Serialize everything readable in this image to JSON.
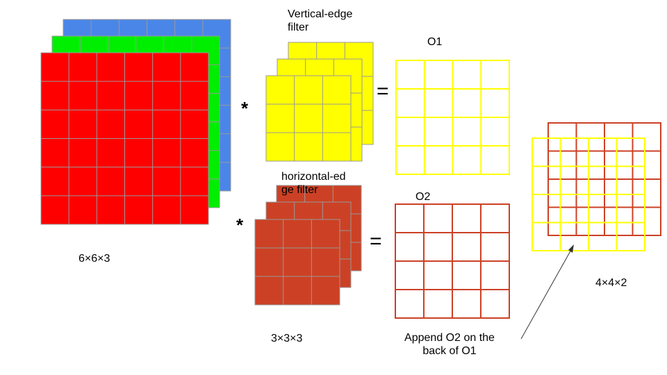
{
  "labels": {
    "input_size": "6×6×3",
    "filter_size": "3×3×3",
    "vertical_filter_line1": "Vertical-edge",
    "vertical_filter_line2": "filter",
    "horizontal_filter_line1": "horizontal-ed",
    "horizontal_filter_line2": "ge filter",
    "output1": "O1",
    "output2": "O2",
    "output_size": "4×4×2",
    "append_line1": "Append O2 on the",
    "append_line2": "back of O1"
  },
  "operators": {
    "convolve": "*",
    "equals": "="
  },
  "colors": {
    "input_red": "#ff0000",
    "input_green": "#00ee00",
    "input_blue": "#4a86e8",
    "vertical_filter": "#ffff00",
    "horizontal_filter": "#cc4125",
    "output1_grid": "#ffff00",
    "output2_grid": "#cc4125",
    "cell_border": "#999999"
  },
  "grids": {
    "input": {
      "rows": 6,
      "cols": 6,
      "channels": 3
    },
    "filter": {
      "rows": 3,
      "cols": 3,
      "channels": 3
    },
    "output": {
      "rows": 4,
      "cols": 4,
      "channels": 2
    }
  }
}
